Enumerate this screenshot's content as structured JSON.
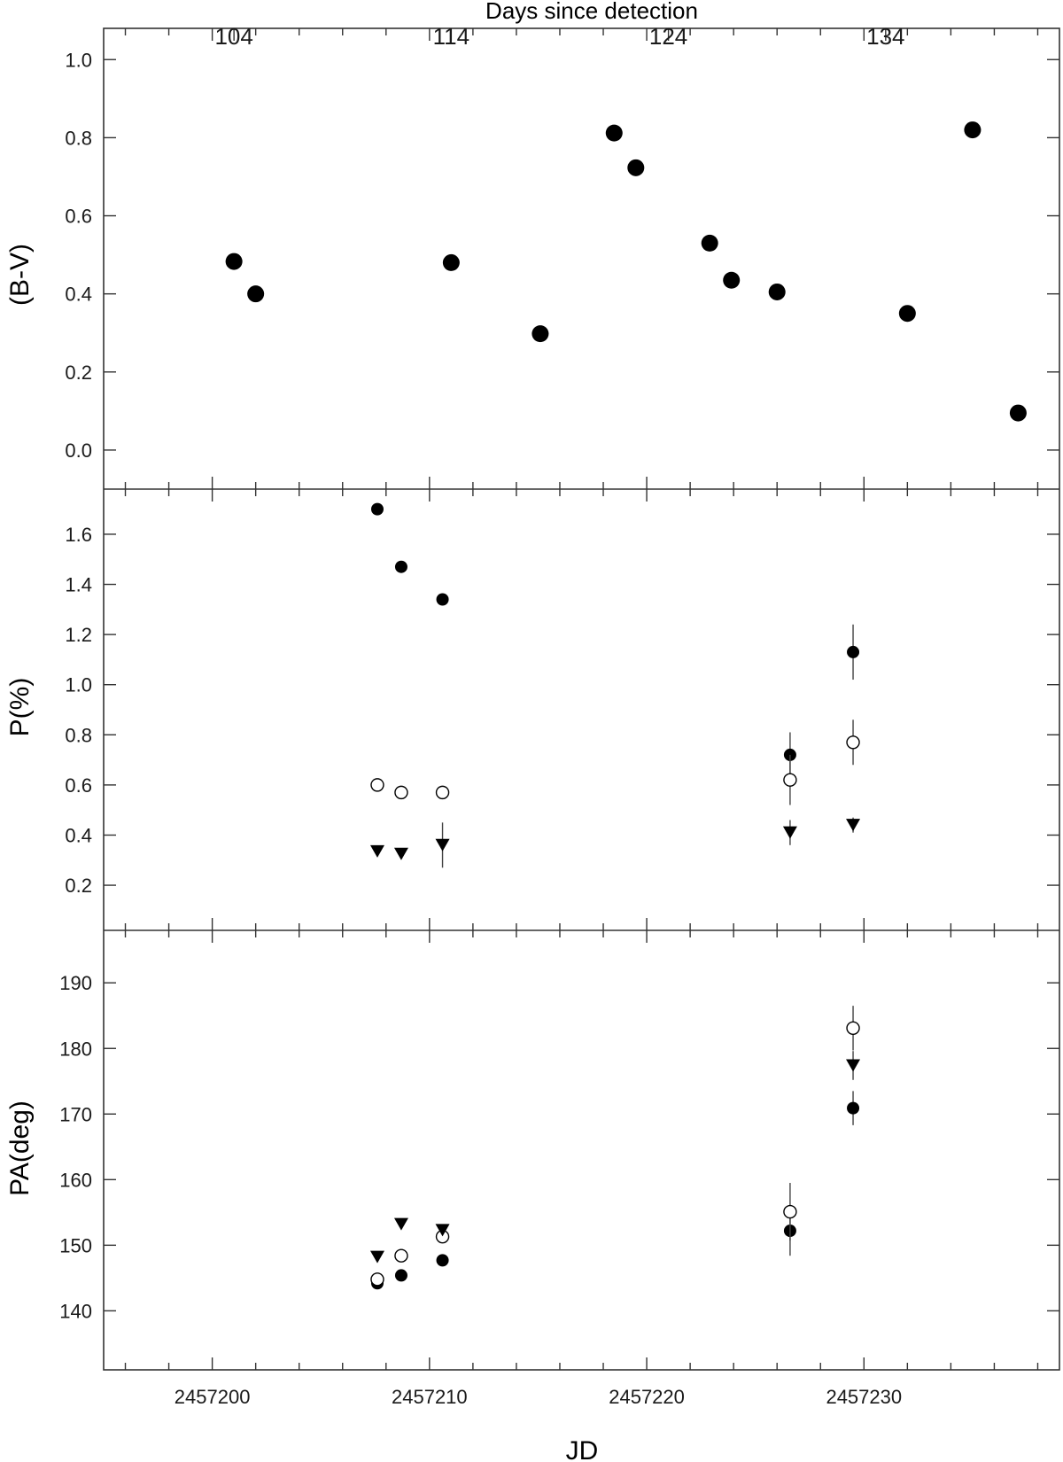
{
  "top_axis": {
    "label": "Days since detection",
    "ticks": [
      {
        "jd": 2457201.0,
        "label": "104"
      },
      {
        "jd": 2457211.0,
        "label": "114"
      },
      {
        "jd": 2457221.0,
        "label": "124"
      },
      {
        "jd": 2457231.0,
        "label": "134"
      }
    ]
  },
  "x_axis": {
    "label": "JD",
    "range": [
      2457195,
      2457239
    ],
    "major_ticks": [
      2457200,
      2457210,
      2457220,
      2457230
    ],
    "minor_step": 2
  },
  "chart_data": [
    {
      "type": "scatter",
      "id": "bv",
      "ylabel": "(B-V)",
      "ylim": [
        -0.1,
        1.08
      ],
      "yticks": [
        0.0,
        0.2,
        0.4,
        0.6,
        0.8,
        1.0
      ],
      "ytick_labels": [
        "0.0",
        "0.2",
        "0.4",
        "0.6",
        "0.8",
        "1.0"
      ],
      "series": [
        {
          "marker": "filled-circle",
          "points": [
            {
              "x": 2457201.0,
              "y": 0.483
            },
            {
              "x": 2457202.0,
              "y": 0.4
            },
            {
              "x": 2457211.0,
              "y": 0.48
            },
            {
              "x": 2457215.1,
              "y": 0.298
            },
            {
              "x": 2457218.5,
              "y": 0.812
            },
            {
              "x": 2457219.5,
              "y": 0.723
            },
            {
              "x": 2457222.9,
              "y": 0.53
            },
            {
              "x": 2457223.9,
              "y": 0.435
            },
            {
              "x": 2457226.0,
              "y": 0.405
            },
            {
              "x": 2457232.0,
              "y": 0.35
            },
            {
              "x": 2457235.0,
              "y": 0.82
            },
            {
              "x": 2457237.1,
              "y": 0.095
            }
          ]
        }
      ]
    },
    {
      "type": "scatter",
      "id": "p",
      "ylabel": "P(%)",
      "ylim": [
        0.02,
        1.78
      ],
      "yticks": [
        0.2,
        0.4,
        0.6,
        0.8,
        1.0,
        1.2,
        1.4,
        1.6
      ],
      "ytick_labels": [
        "0.2",
        "0.4",
        "0.6",
        "0.8",
        "1.0",
        "1.2",
        "1.4",
        "1.6"
      ],
      "series": [
        {
          "marker": "filled-circle",
          "points": [
            {
              "x": 2457207.6,
              "y": 1.7
            },
            {
              "x": 2457208.7,
              "y": 1.47
            },
            {
              "x": 2457210.6,
              "y": 1.34
            },
            {
              "x": 2457226.6,
              "y": 0.72,
              "err": 0.09
            },
            {
              "x": 2457229.5,
              "y": 1.13,
              "err": 0.11
            }
          ]
        },
        {
          "marker": "open-circle",
          "points": [
            {
              "x": 2457207.6,
              "y": 0.6
            },
            {
              "x": 2457208.7,
              "y": 0.57
            },
            {
              "x": 2457210.6,
              "y": 0.57
            },
            {
              "x": 2457226.6,
              "y": 0.62,
              "err": 0.1
            },
            {
              "x": 2457229.5,
              "y": 0.77,
              "err": 0.09
            }
          ]
        },
        {
          "marker": "filled-triangle-down",
          "points": [
            {
              "x": 2457207.6,
              "y": 0.335
            },
            {
              "x": 2457208.7,
              "y": 0.325
            },
            {
              "x": 2457210.6,
              "y": 0.36,
              "err": 0.09
            },
            {
              "x": 2457226.6,
              "y": 0.41,
              "err": 0.05
            },
            {
              "x": 2457229.5,
              "y": 0.44,
              "err": 0.03
            }
          ]
        }
      ]
    },
    {
      "type": "scatter",
      "id": "pa",
      "ylabel": "PA(deg)",
      "ylim": [
        131,
        198
      ],
      "yticks": [
        140,
        150,
        160,
        170,
        180,
        190
      ],
      "ytick_labels": [
        "140",
        "150",
        "160",
        "170",
        "180",
        "190"
      ],
      "series": [
        {
          "marker": "filled-circle",
          "points": [
            {
              "x": 2457207.6,
              "y": 144.2
            },
            {
              "x": 2457208.7,
              "y": 145.4
            },
            {
              "x": 2457210.6,
              "y": 147.7
            },
            {
              "x": 2457226.6,
              "y": 152.2,
              "err": 3.8
            },
            {
              "x": 2457229.5,
              "y": 170.9,
              "err": 2.6
            }
          ]
        },
        {
          "marker": "open-circle",
          "points": [
            {
              "x": 2457207.6,
              "y": 144.8
            },
            {
              "x": 2457208.7,
              "y": 148.4
            },
            {
              "x": 2457210.6,
              "y": 151.3
            },
            {
              "x": 2457226.6,
              "y": 155.1,
              "err": 4.4
            },
            {
              "x": 2457229.5,
              "y": 183.1,
              "err": 3.4
            }
          ]
        },
        {
          "marker": "filled-triangle-down",
          "points": [
            {
              "x": 2457207.6,
              "y": 148.2
            },
            {
              "x": 2457208.7,
              "y": 153.2
            },
            {
              "x": 2457210.6,
              "y": 152.3
            },
            {
              "x": 2457229.5,
              "y": 177.4,
              "err": 2.2
            }
          ]
        }
      ]
    }
  ]
}
